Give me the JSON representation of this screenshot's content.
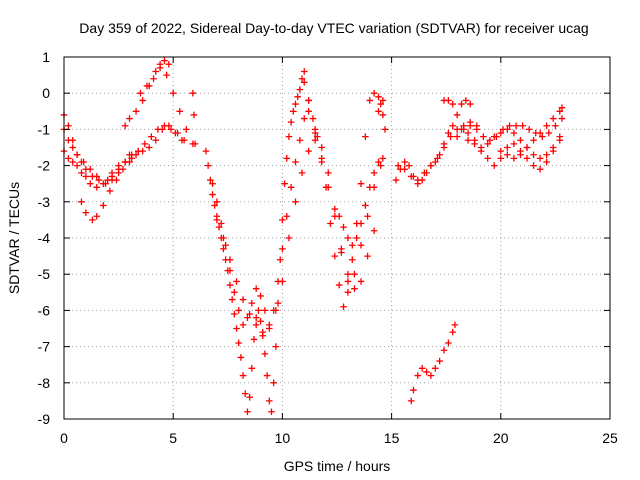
{
  "chart_data": {
    "type": "scatter",
    "title": "Day 359 of 2022, Sidereal Day-to-day VTEC variation (SDTVAR) for receiver ucag",
    "xlabel": "GPS time / hours",
    "ylabel": "SDTVAR / TECUs",
    "xlim": [
      0,
      25
    ],
    "ylim": [
      -9,
      1
    ],
    "x_ticks": [
      "0",
      "5",
      "10",
      "15",
      "20",
      "25"
    ],
    "y_ticks": [
      "1",
      "0",
      "-1",
      "-2",
      "-3",
      "-4",
      "-5",
      "-6",
      "-7",
      "-8",
      "-9"
    ],
    "grid": true,
    "marker": "plus",
    "point_color": "#ff0000",
    "series": [
      {
        "x": [
          0.0,
          0.2,
          0.4,
          0.6,
          0.8,
          1.0,
          1.3,
          1.6,
          1.9,
          2.2,
          2.5,
          2.8,
          3.0
        ],
        "y": [
          -0.6,
          -0.9,
          -1.3,
          -1.7,
          -1.9,
          -2.1,
          -2.3,
          -2.4,
          -2.5,
          -2.4,
          -2.2,
          -1.9,
          -1.7
        ]
      },
      {
        "x": [
          0.0,
          0.2,
          0.4,
          0.6,
          0.8,
          1.0,
          1.2,
          1.5,
          1.8,
          2.0,
          2.2,
          2.5,
          2.8,
          3.1,
          3.4
        ],
        "y": [
          -1.6,
          -1.8,
          -1.9,
          -2.0,
          -2.2,
          -2.3,
          -2.5,
          -2.6,
          -2.5,
          -2.4,
          -2.3,
          -2.1,
          -1.9,
          -1.7,
          -1.6
        ]
      },
      {
        "x": [
          0.0,
          0.2,
          0.4,
          0.6,
          0.9,
          1.2,
          1.5
        ],
        "y": [
          -1.0,
          -1.3,
          -1.5,
          -1.7,
          -1.9,
          -2.1,
          -2.3
        ]
      },
      {
        "x": [
          0.8,
          1.0,
          1.3,
          1.5,
          1.8,
          2.1,
          2.4,
          2.7,
          3.0,
          3.3,
          3.6,
          3.9,
          4.2,
          4.5,
          4.8,
          5.1,
          5.4
        ],
        "y": [
          -3.0,
          -3.3,
          -3.5,
          -3.4,
          -3.1,
          -2.7,
          -2.4,
          -2.1,
          -1.9,
          -1.7,
          -1.6,
          -1.5,
          -1.3,
          -1.0,
          -0.9,
          -1.1,
          -1.3
        ]
      },
      {
        "x": [
          2.2,
          2.5,
          2.8,
          3.1,
          3.4,
          3.7,
          4.0,
          4.3,
          4.6,
          4.9,
          5.2,
          5.5
        ],
        "y": [
          -2.2,
          -2.0,
          -1.9,
          -1.8,
          -1.6,
          -1.4,
          -1.2,
          -1.0,
          -0.9,
          -1.0,
          -1.1,
          -1.3
        ]
      },
      {
        "x": [
          2.8,
          3.0,
          3.3,
          3.6,
          3.9,
          4.2,
          4.4,
          4.6,
          4.8
        ],
        "y": [
          -0.9,
          -0.7,
          -0.5,
          -0.2,
          0.2,
          0.6,
          0.8,
          0.9,
          0.8
        ]
      },
      {
        "x": [
          3.5,
          3.8,
          4.1,
          4.4,
          4.7,
          5.0,
          5.3,
          5.6,
          5.9
        ],
        "y": [
          0.0,
          0.2,
          0.4,
          0.7,
          0.5,
          0.0,
          -0.5,
          -1.0,
          -1.4
        ]
      },
      {
        "x": [
          5.9,
          5.95,
          6.0
        ],
        "y": [
          0.0,
          -0.6,
          -1.4
        ]
      },
      {
        "x": [
          6.5,
          6.6,
          6.7,
          6.8,
          6.9,
          7.0,
          7.1,
          7.2,
          7.3,
          7.4,
          7.5,
          7.6,
          7.7,
          7.8,
          7.9,
          8.0,
          8.1,
          8.2,
          8.3,
          8.4,
          8.5,
          8.6,
          8.7,
          8.8,
          8.9,
          9.0,
          9.1,
          9.2,
          9.3,
          9.4,
          9.5,
          9.6,
          9.7,
          9.8,
          9.9,
          10.0,
          10.1,
          10.2,
          10.3,
          10.4,
          10.5,
          10.6,
          10.7,
          10.8,
          10.9,
          11.0
        ],
        "y": [
          -1.6,
          -2.0,
          -2.4,
          -2.8,
          -3.1,
          -3.4,
          -3.7,
          -4.0,
          -4.3,
          -4.6,
          -4.9,
          -5.3,
          -5.7,
          -6.1,
          -6.5,
          -6.9,
          -7.3,
          -7.8,
          -8.3,
          -8.8,
          -8.4,
          -7.6,
          -6.8,
          -6.2,
          -6.0,
          -6.3,
          -6.7,
          -7.2,
          -7.8,
          -8.5,
          -8.8,
          -8.0,
          -7.0,
          -5.8,
          -4.6,
          -3.5,
          -2.5,
          -1.8,
          -1.2,
          -0.8,
          -0.5,
          -0.3,
          -0.1,
          0.1,
          0.4,
          0.6
        ]
      },
      {
        "x": [
          6.8,
          7.0,
          7.2,
          7.4,
          7.6,
          7.8,
          8.0,
          8.2,
          8.4,
          8.6,
          8.8,
          9.0,
          9.2,
          9.4,
          9.6,
          9.8,
          10.0,
          10.2,
          10.4,
          10.6,
          10.8,
          11.0,
          11.2
        ],
        "y": [
          -2.5,
          -3.0,
          -3.6,
          -4.2,
          -4.9,
          -5.5,
          -6.0,
          -6.4,
          -6.2,
          -5.8,
          -5.4,
          -5.6,
          -6.0,
          -6.4,
          -6.0,
          -5.2,
          -4.3,
          -3.4,
          -2.6,
          -1.9,
          -1.3,
          -0.7,
          -0.2
        ]
      },
      {
        "x": [
          7.0,
          7.3,
          7.6,
          7.9,
          8.2,
          8.5,
          8.8,
          9.1,
          9.4,
          9.7,
          10.0,
          10.3,
          10.6,
          10.9,
          11.2,
          11.5
        ],
        "y": [
          -3.5,
          -4.0,
          -4.6,
          -5.2,
          -5.7,
          -6.1,
          -6.4,
          -6.6,
          -6.5,
          -6.0,
          -5.2,
          -4.0,
          -3.0,
          -2.2,
          -1.6,
          -1.1
        ]
      },
      {
        "x": [
          11.0,
          11.2,
          11.4,
          11.6,
          11.8,
          12.0,
          12.2,
          12.4,
          12.6,
          12.8,
          13.0,
          13.2,
          13.4,
          13.6,
          13.8,
          14.0,
          14.2,
          14.4,
          14.6
        ],
        "y": [
          0.3,
          -0.2,
          -0.7,
          -1.2,
          -1.8,
          -2.6,
          -3.6,
          -4.5,
          -5.3,
          -5.9,
          -5.5,
          -4.6,
          -3.6,
          -2.5,
          -1.2,
          -0.2,
          0.0,
          -0.1,
          -0.2
        ]
      },
      {
        "x": [
          11.2,
          11.5,
          11.8,
          12.1,
          12.4,
          12.7,
          13.0,
          13.3,
          13.6,
          13.9,
          14.2,
          14.5
        ],
        "y": [
          -0.5,
          -1.0,
          -1.5,
          -2.2,
          -3.2,
          -4.4,
          -5.2,
          -5.0,
          -4.2,
          -3.4,
          -2.6,
          -2.0
        ]
      },
      {
        "x": [
          11.5,
          11.8,
          12.1,
          12.4,
          12.7,
          13.0,
          13.3,
          13.6,
          13.9,
          14.2
        ],
        "y": [
          -1.3,
          -1.9,
          -2.6,
          -3.4,
          -4.3,
          -5.0,
          -5.4,
          -5.2,
          -4.5,
          -3.8
        ]
      },
      {
        "x": [
          12.6,
          12.8,
          13.0,
          13.2,
          13.4,
          13.6,
          13.8,
          14.0,
          14.2,
          14.4,
          14.6
        ],
        "y": [
          -3.4,
          -3.7,
          -4.0,
          -4.2,
          -4.0,
          -3.6,
          -3.1,
          -2.6,
          -2.2,
          -1.9,
          -1.8
        ]
      },
      {
        "x": [
          14.4,
          14.5,
          14.6,
          14.7
        ],
        "y": [
          -0.5,
          -0.3,
          -0.6,
          -1.0
        ]
      },
      {
        "x": [
          15.2,
          15.4,
          15.6,
          15.8,
          16.0,
          16.2,
          16.4,
          16.6,
          16.8,
          17.0,
          17.2,
          17.4,
          17.6,
          17.8,
          18.0,
          18.2,
          18.4,
          18.6
        ],
        "y": [
          -2.4,
          -2.1,
          -1.9,
          -2.0,
          -2.3,
          -2.5,
          -2.4,
          -2.2,
          -2.0,
          -1.9,
          -1.7,
          -1.4,
          -1.1,
          -0.9,
          -0.6,
          -0.3,
          -0.2,
          -0.3
        ]
      },
      {
        "x": [
          15.3,
          15.6,
          15.9,
          16.2,
          16.5,
          16.8,
          17.1,
          17.4,
          17.7,
          18.0,
          18.3,
          18.6,
          18.9
        ],
        "y": [
          -2.0,
          -2.1,
          -2.3,
          -2.4,
          -2.2,
          -2.0,
          -1.8,
          -1.5,
          -1.2,
          -1.0,
          -0.9,
          -0.8,
          -0.9
        ]
      },
      {
        "x": [
          17.4,
          17.6,
          17.8
        ],
        "y": [
          -0.2,
          -0.2,
          -0.3
        ]
      },
      {
        "x": [
          18.0,
          18.3,
          18.6,
          18.9,
          19.2,
          19.5,
          19.8,
          20.1,
          20.4,
          20.7,
          21.0,
          21.3,
          21.6,
          21.9,
          22.2,
          22.5,
          22.8
        ],
        "y": [
          -1.2,
          -1.0,
          -0.9,
          -1.0,
          -1.2,
          -1.3,
          -1.2,
          -1.0,
          -0.9,
          -0.9,
          -0.9,
          -1.0,
          -1.1,
          -1.2,
          -1.1,
          -0.9,
          -0.7
        ]
      },
      {
        "x": [
          18.2,
          18.5,
          18.8,
          19.1,
          19.4,
          19.7,
          20.0,
          20.3,
          20.6,
          20.9,
          21.2,
          21.5,
          21.8,
          22.1,
          22.4,
          22.7
        ],
        "y": [
          -1.0,
          -1.1,
          -1.3,
          -1.6,
          -1.8,
          -2.0,
          -1.8,
          -1.5,
          -1.4,
          -1.6,
          -1.8,
          -2.0,
          -2.1,
          -1.9,
          -1.6,
          -1.3
        ]
      },
      {
        "x": [
          18.5,
          18.8,
          19.1,
          19.4,
          19.7,
          20.0,
          20.3,
          20.6,
          20.9,
          21.2,
          21.5,
          21.8,
          22.1,
          22.4,
          22.7
        ],
        "y": [
          -1.3,
          -1.4,
          -1.5,
          -1.4,
          -1.2,
          -1.1,
          -1.0,
          -1.1,
          -1.3,
          -1.5,
          -1.7,
          -1.8,
          -1.7,
          -1.5,
          -1.2
        ]
      },
      {
        "x": [
          20.0,
          20.3,
          20.6,
          20.9,
          21.2,
          21.5,
          21.8,
          22.1,
          22.4,
          22.7,
          22.8
        ],
        "y": [
          -1.6,
          -1.7,
          -1.8,
          -1.7,
          -1.5,
          -1.3,
          -1.1,
          -0.9,
          -0.7,
          -0.5,
          -0.4
        ]
      },
      {
        "x": [
          15.9,
          16.0,
          16.2,
          16.4,
          16.6,
          16.8,
          17.0,
          17.2,
          17.4,
          17.6,
          17.8,
          17.9
        ],
        "y": [
          -8.5,
          -8.2,
          -7.8,
          -7.6,
          -7.7,
          -7.8,
          -7.6,
          -7.4,
          -7.1,
          -6.9,
          -6.6,
          -6.4
        ]
      }
    ]
  }
}
